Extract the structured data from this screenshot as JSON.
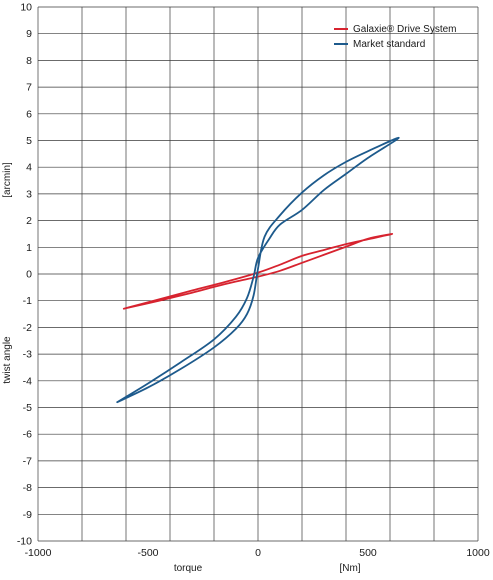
{
  "chart_data": {
    "type": "line",
    "title": "",
    "xlabel": "torque",
    "xunit": "[Nm]",
    "ylabel": "twist angle",
    "yunit": "[arcmin]",
    "xlim": [
      -1000,
      1000
    ],
    "ylim": [
      -10,
      10
    ],
    "xticks": [
      -1000,
      -500,
      0,
      500,
      1000
    ],
    "xgrid_step": 200,
    "yticks": [
      -10,
      -9,
      -8,
      -7,
      -6,
      -5,
      -4,
      -3,
      -2,
      -1,
      0,
      1,
      2,
      3,
      4,
      5,
      6,
      7,
      8,
      9,
      10
    ],
    "grid": true,
    "legend_position": "top-right",
    "series": [
      {
        "name": "Galaxie® Drive System",
        "color": "#d7232f",
        "points": [
          [
            -610,
            -1.3
          ],
          [
            -450,
            -0.95
          ],
          [
            -300,
            -0.62
          ],
          [
            -150,
            -0.3
          ],
          [
            0,
            0.05
          ],
          [
            100,
            0.35
          ],
          [
            200,
            0.68
          ],
          [
            300,
            0.9
          ],
          [
            400,
            1.12
          ],
          [
            500,
            1.3
          ],
          [
            610,
            1.5
          ],
          [
            500,
            1.32
          ],
          [
            400,
            1.02
          ],
          [
            300,
            0.72
          ],
          [
            200,
            0.42
          ],
          [
            100,
            0.12
          ],
          [
            0,
            -0.1
          ],
          [
            -100,
            -0.28
          ],
          [
            -200,
            -0.48
          ],
          [
            -300,
            -0.7
          ],
          [
            -450,
            -1.0
          ],
          [
            -610,
            -1.3
          ]
        ]
      },
      {
        "name": "Market standard",
        "color": "#1d5a8c",
        "points": [
          [
            -640,
            -4.8
          ],
          [
            -500,
            -4.1
          ],
          [
            -350,
            -3.3
          ],
          [
            -200,
            -2.45
          ],
          [
            -100,
            -1.6
          ],
          [
            -50,
            -0.9
          ],
          [
            -20,
            -0.1
          ],
          [
            0,
            0.6
          ],
          [
            50,
            1.3
          ],
          [
            100,
            1.85
          ],
          [
            200,
            2.4
          ],
          [
            300,
            3.15
          ],
          [
            400,
            3.75
          ],
          [
            500,
            4.35
          ],
          [
            640,
            5.1
          ],
          [
            500,
            4.6
          ],
          [
            400,
            4.2
          ],
          [
            300,
            3.7
          ],
          [
            200,
            3.05
          ],
          [
            100,
            2.2
          ],
          [
            30,
            1.4
          ],
          [
            0,
            0.2
          ],
          [
            -20,
            -0.8
          ],
          [
            -50,
            -1.5
          ],
          [
            -100,
            -2.05
          ],
          [
            -200,
            -2.75
          ],
          [
            -350,
            -3.55
          ],
          [
            -500,
            -4.25
          ],
          [
            -640,
            -4.8
          ]
        ]
      }
    ]
  }
}
